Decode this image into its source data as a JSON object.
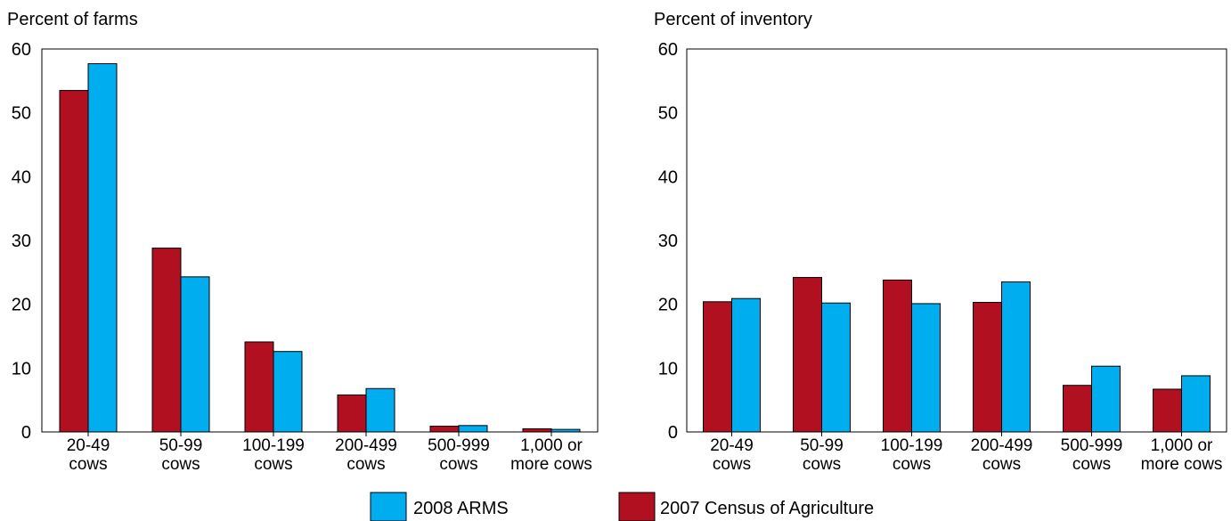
{
  "colors": {
    "census": "#b01020",
    "arms": "#00aeef",
    "axis": "#000000"
  },
  "legend": [
    {
      "key": "arms",
      "label": "2008 ARMS"
    },
    {
      "key": "census",
      "label": "2007 Census of Agriculture"
    }
  ],
  "chart_data": [
    {
      "type": "bar",
      "ylabel": "Percent of farms",
      "ylim": [
        0,
        60
      ],
      "yticks": [
        "0",
        "10",
        "20",
        "30",
        "40",
        "50",
        "60"
      ],
      "categories": [
        [
          "20-49",
          "cows"
        ],
        [
          "50-99",
          "cows"
        ],
        [
          "100-199",
          "cows"
        ],
        [
          "200-499",
          "cows"
        ],
        [
          "500-999",
          "cows"
        ],
        [
          "1,000 or",
          "more cows"
        ]
      ],
      "series": [
        {
          "name": "2007 Census of Agriculture",
          "key": "census",
          "values": [
            53.5,
            28.8,
            14.1,
            5.8,
            0.9,
            0.5
          ]
        },
        {
          "name": "2008 ARMS",
          "key": "arms",
          "values": [
            57.7,
            24.3,
            12.6,
            6.8,
            1.0,
            0.4
          ]
        }
      ]
    },
    {
      "type": "bar",
      "ylabel": "Percent of inventory",
      "ylim": [
        0,
        60
      ],
      "yticks": [
        "0",
        "10",
        "20",
        "30",
        "40",
        "50",
        "60"
      ],
      "categories": [
        [
          "20-49",
          "cows"
        ],
        [
          "50-99",
          "cows"
        ],
        [
          "100-199",
          "cows"
        ],
        [
          "200-499",
          "cows"
        ],
        [
          "500-999",
          "cows"
        ],
        [
          "1,000 or",
          "more cows"
        ]
      ],
      "series": [
        {
          "name": "2007 Census of Agriculture",
          "key": "census",
          "values": [
            20.4,
            24.2,
            23.8,
            20.3,
            7.3,
            6.7
          ]
        },
        {
          "name": "2008 ARMS",
          "key": "arms",
          "values": [
            20.9,
            20.2,
            20.1,
            23.5,
            10.3,
            8.8
          ]
        }
      ]
    }
  ]
}
